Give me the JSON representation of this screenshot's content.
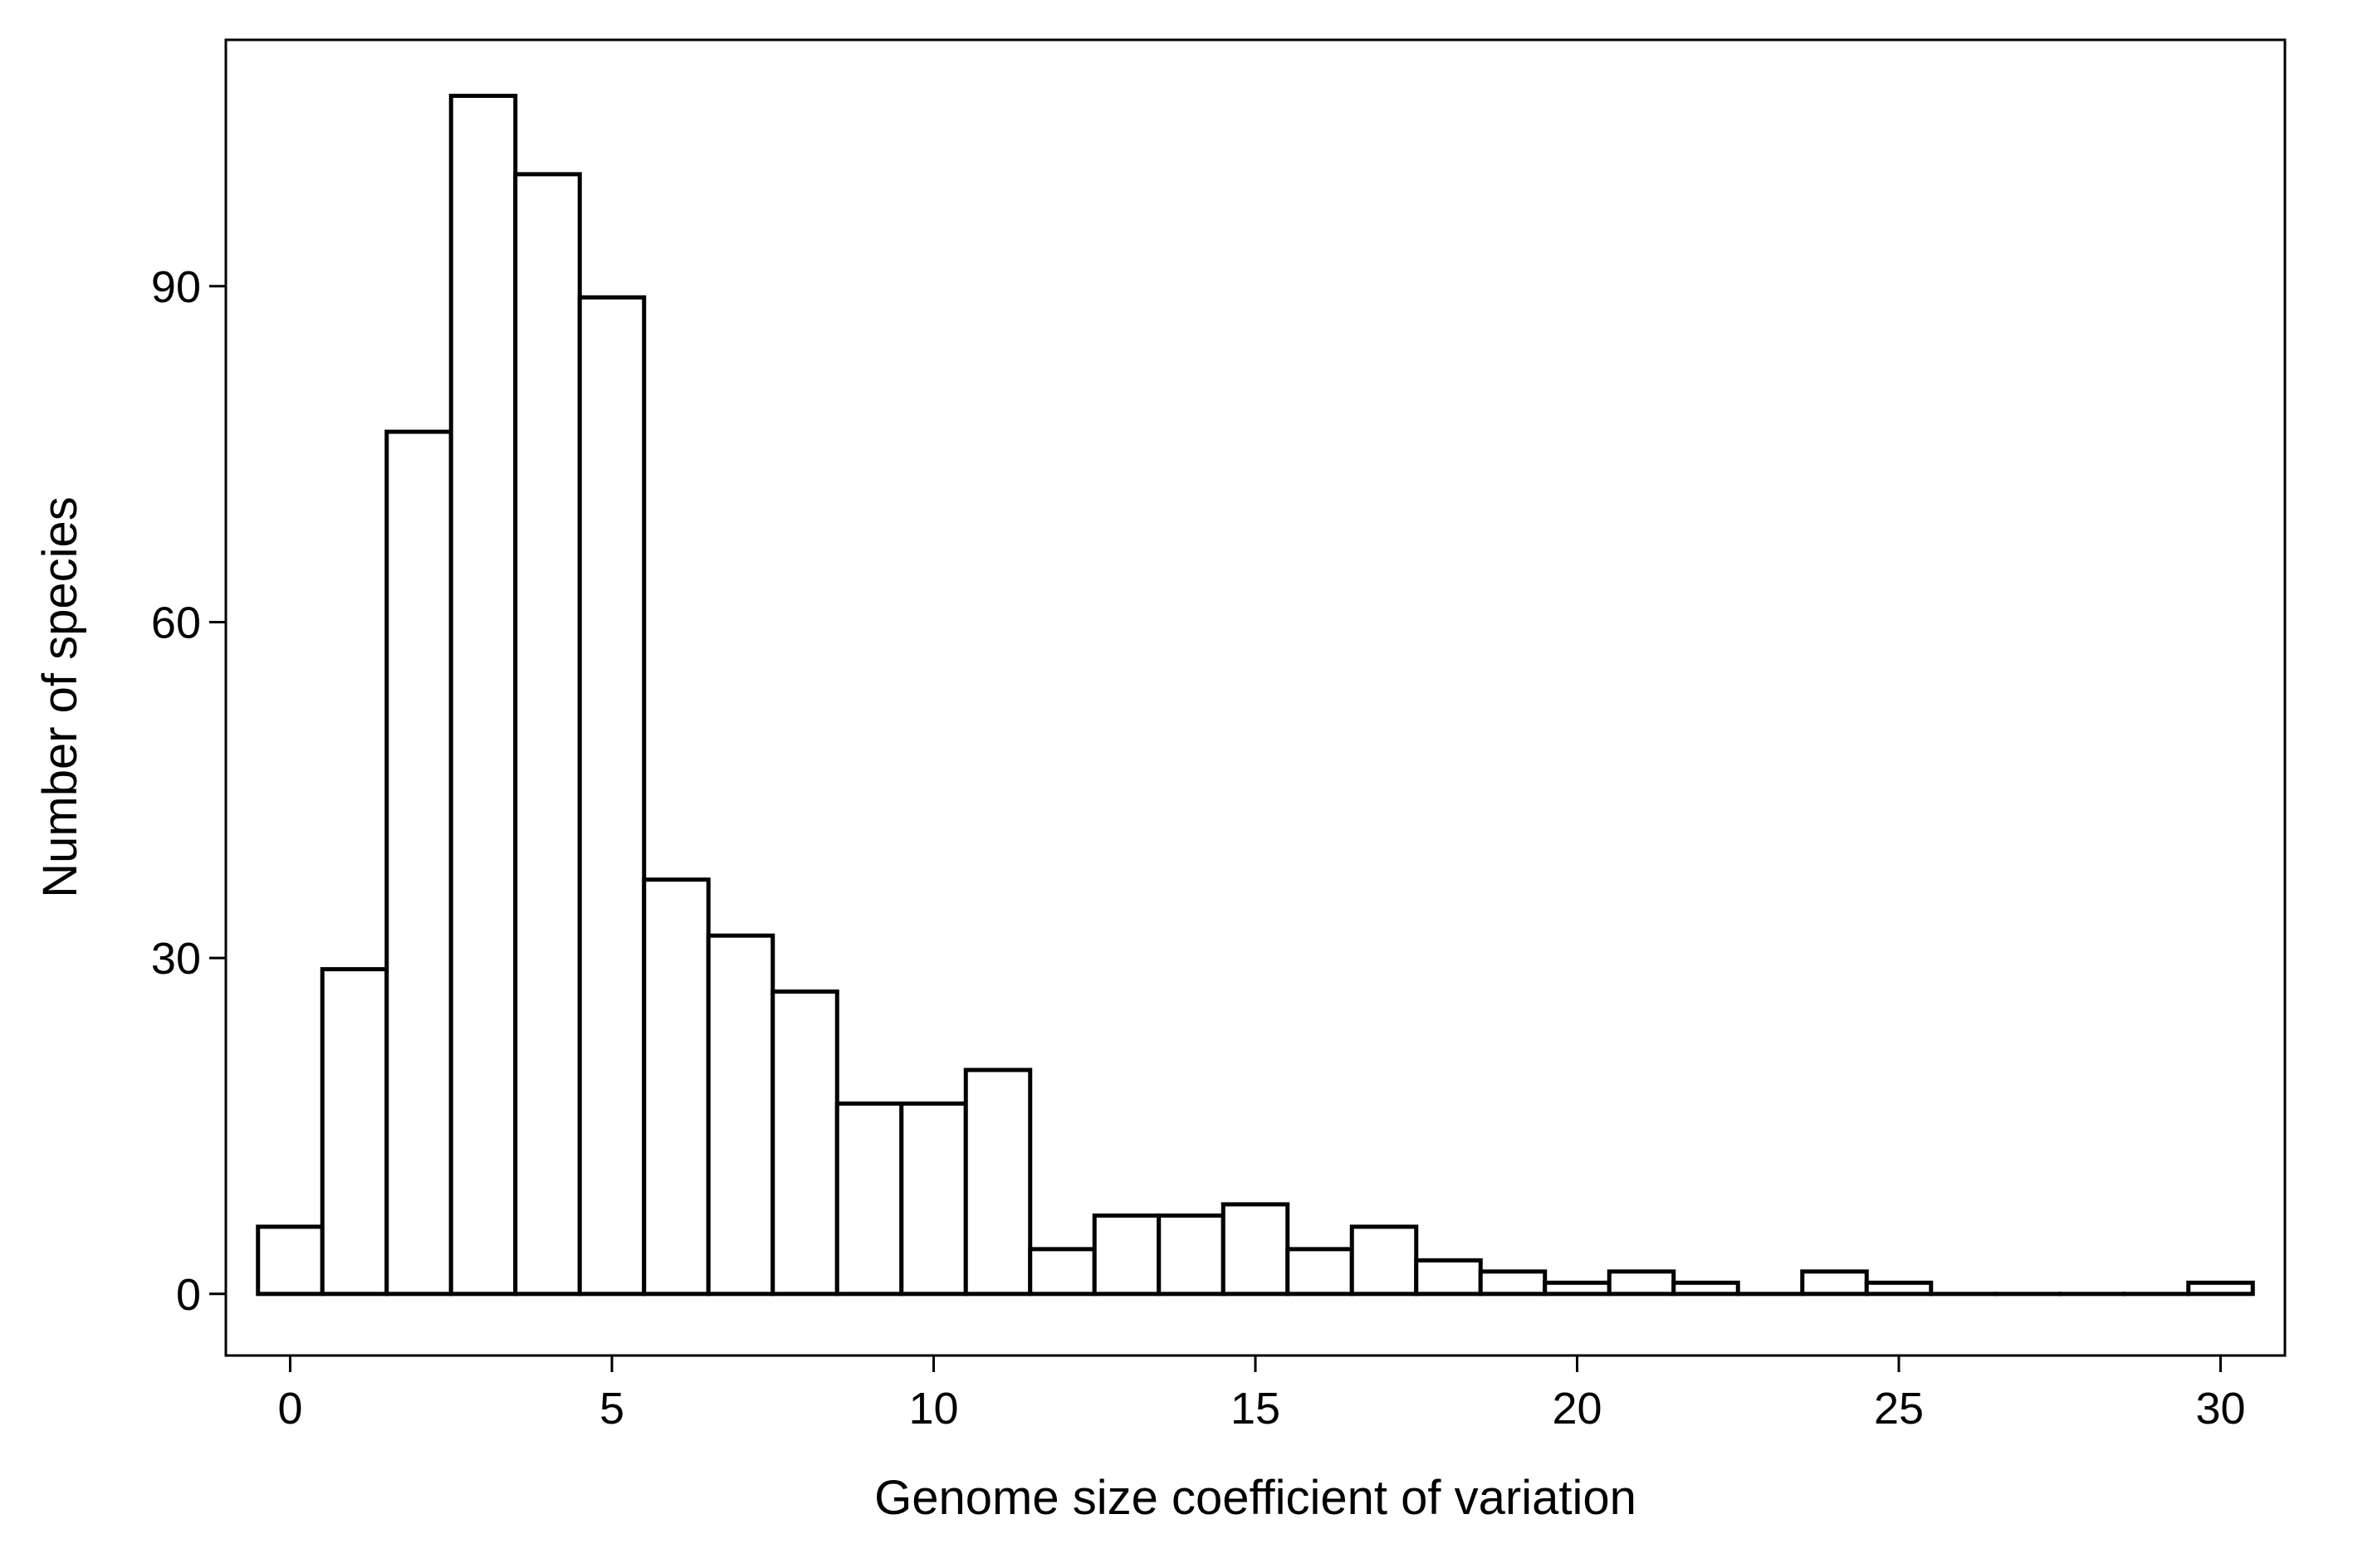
{
  "chart_data": {
    "type": "bar",
    "subtype": "histogram",
    "title": "",
    "xlabel": "Genome size coefficient of variation",
    "ylabel": "Number of species",
    "bin_width": 1,
    "bins": [
      {
        "x": 0,
        "count": 6
      },
      {
        "x": 1,
        "count": 29
      },
      {
        "x": 2,
        "count": 77
      },
      {
        "x": 3,
        "count": 107
      },
      {
        "x": 4,
        "count": 100
      },
      {
        "x": 5,
        "count": 89
      },
      {
        "x": 6,
        "count": 37
      },
      {
        "x": 7,
        "count": 32
      },
      {
        "x": 8,
        "count": 27
      },
      {
        "x": 9,
        "count": 17
      },
      {
        "x": 10,
        "count": 17
      },
      {
        "x": 11,
        "count": 20
      },
      {
        "x": 12,
        "count": 4
      },
      {
        "x": 13,
        "count": 7
      },
      {
        "x": 14,
        "count": 7
      },
      {
        "x": 15,
        "count": 8
      },
      {
        "x": 16,
        "count": 4
      },
      {
        "x": 17,
        "count": 6
      },
      {
        "x": 18,
        "count": 3
      },
      {
        "x": 19,
        "count": 2
      },
      {
        "x": 20,
        "count": 1
      },
      {
        "x": 21,
        "count": 2
      },
      {
        "x": 22,
        "count": 1
      },
      {
        "x": 23,
        "count": 0
      },
      {
        "x": 24,
        "count": 2
      },
      {
        "x": 25,
        "count": 1
      },
      {
        "x": 26,
        "count": 0
      },
      {
        "x": 27,
        "count": 0
      },
      {
        "x": 28,
        "count": 0
      },
      {
        "x": 29,
        "count": 0
      },
      {
        "x": 30,
        "count": 1
      }
    ],
    "xlim": [
      -1,
      31
    ],
    "ylim": [
      -5.5,
      112
    ],
    "x_ticks": [
      0,
      5,
      10,
      15,
      20,
      25,
      30
    ],
    "y_ticks": [
      0,
      30,
      60,
      90
    ],
    "grid": false,
    "legend": "none",
    "bar_fill": "#ffffff",
    "bar_stroke": "#000000"
  }
}
